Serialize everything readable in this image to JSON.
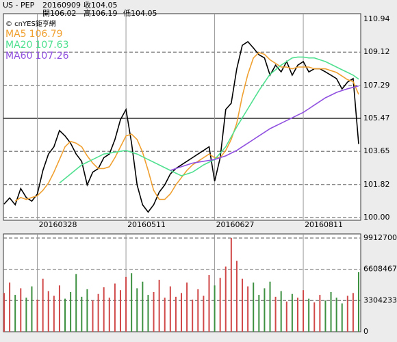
{
  "header": {
    "symbol": "US - PEP",
    "date": "20160909",
    "quotes": [
      {
        "label": "收",
        "value": 104.05
      },
      {
        "label": "開",
        "value": 106.02
      },
      {
        "label": "高",
        "value": 106.19
      },
      {
        "label": "低",
        "value": 104.05
      }
    ]
  },
  "chart_data": [
    {
      "type": "line",
      "source": "© cnYES鉅亨網",
      "categories": [
        null,
        null,
        null,
        null,
        null,
        null,
        "20160328",
        null,
        null,
        null,
        null,
        null,
        null,
        null,
        null,
        null,
        null,
        null,
        null,
        null,
        null,
        null,
        "20160511",
        null,
        null,
        null,
        null,
        null,
        null,
        null,
        null,
        null,
        null,
        null,
        null,
        null,
        null,
        null,
        "20160627",
        null,
        null,
        null,
        null,
        null,
        null,
        null,
        null,
        null,
        null,
        null,
        null,
        null,
        null,
        null,
        "20160811",
        null,
        null,
        null,
        null,
        null,
        null,
        null,
        null,
        null,
        null
      ],
      "series": [
        {
          "color": "#000000",
          "values": [
            100.74,
            101.08,
            100.7,
            101.6,
            101.1,
            100.9,
            101.3,
            102.6,
            103.5,
            103.9,
            104.8,
            104.5,
            104.1,
            103.5,
            103.1,
            101.8,
            102.5,
            102.7,
            103.3,
            103.5,
            104.3,
            105.4,
            105.96,
            104.1,
            101.8,
            100.7,
            100.3,
            100.7,
            101.4,
            101.8,
            102.4,
            102.7,
            102.9,
            103.1,
            103.3,
            103.5,
            103.7,
            103.9,
            102.0,
            103.3,
            105.96,
            106.3,
            108.2,
            109.5,
            109.7,
            109.35,
            108.98,
            108.8,
            107.85,
            108.4,
            108.03,
            108.6,
            107.85,
            108.4,
            108.6,
            108.03,
            108.2,
            108.2,
            108.03,
            107.85,
            107.66,
            107.09,
            107.47,
            107.66,
            104.05
          ]
        },
        {
          "name": "MA5",
          "color": "#f0a030",
          "values": [
            null,
            null,
            100.9,
            101.1,
            101.0,
            101.1,
            101.2,
            101.5,
            101.9,
            102.5,
            103.2,
            103.9,
            104.2,
            104.1,
            103.9,
            103.4,
            103.0,
            102.7,
            102.7,
            102.8,
            103.3,
            103.9,
            104.5,
            104.6,
            104.3,
            103.6,
            102.6,
            101.5,
            101.0,
            101.0,
            101.3,
            101.8,
            102.2,
            102.6,
            102.9,
            103.1,
            103.3,
            103.5,
            103.3,
            103.3,
            103.7,
            104.3,
            105.2,
            106.7,
            107.9,
            108.8,
            109.1,
            109.0,
            108.7,
            108.5,
            108.3,
            108.3,
            108.2,
            108.3,
            108.3,
            108.3,
            108.2,
            108.2,
            108.2,
            108.1,
            108.0,
            107.8,
            107.6,
            107.5,
            106.79
          ]
        },
        {
          "name": "MA20",
          "color": "#50e090",
          "values": [
            null,
            null,
            null,
            null,
            null,
            null,
            null,
            null,
            null,
            null,
            101.9,
            102.15,
            102.4,
            102.65,
            102.9,
            103.05,
            103.2,
            103.35,
            103.5,
            103.55,
            103.6,
            103.65,
            103.7,
            103.6,
            103.5,
            103.35,
            103.2,
            103.05,
            102.9,
            102.75,
            102.6,
            102.45,
            102.3,
            102.4,
            102.5,
            102.7,
            102.9,
            103.05,
            103.2,
            103.55,
            103.9,
            104.45,
            105.0,
            105.5,
            106.0,
            106.5,
            107.0,
            107.45,
            107.9,
            108.15,
            108.4,
            108.6,
            108.8,
            108.85,
            108.85,
            108.8,
            108.8,
            108.7,
            108.6,
            108.45,
            108.3,
            108.15,
            108.0,
            107.85,
            107.63
          ]
        },
        {
          "name": "MA60",
          "color": "#9050e0",
          "values": [
            null,
            null,
            null,
            null,
            null,
            null,
            null,
            null,
            null,
            null,
            null,
            null,
            null,
            null,
            null,
            null,
            null,
            null,
            null,
            null,
            null,
            null,
            null,
            null,
            null,
            null,
            null,
            null,
            null,
            null,
            102.6,
            102.7,
            102.8,
            102.9,
            103.0,
            103.05,
            103.1,
            103.15,
            103.2,
            103.3,
            103.4,
            103.55,
            103.7,
            103.9,
            104.1,
            104.3,
            104.5,
            104.7,
            104.9,
            105.05,
            105.2,
            105.35,
            105.5,
            105.65,
            105.8,
            106.0,
            106.2,
            106.4,
            106.6,
            106.75,
            106.9,
            107.0,
            107.1,
            107.18,
            107.26
          ]
        }
      ],
      "ylim": [
        100,
        110.94
      ],
      "yticks": [
        110.94,
        109.12,
        107.29,
        105.47,
        103.65,
        101.82,
        {
          "value": 100,
          "label": "100.00"
        }
      ],
      "grid": true
    },
    {
      "type": "bar",
      "up_color": "#d04848",
      "down_color": "#3c9040",
      "values": [
        4100000,
        5200000,
        3900000,
        4600000,
        3600000,
        4800000,
        3400000,
        5600000,
        4300000,
        3800000,
        4900000,
        3500000,
        4200000,
        6100000,
        3700000,
        4500000,
        3300000,
        4000000,
        4700000,
        3600000,
        5100000,
        4400000,
        5800000,
        6200000,
        4600000,
        5300000,
        3900000,
        4200000,
        5500000,
        3600000,
        4800000,
        3700000,
        4100000,
        5200000,
        3400000,
        4500000,
        3800000,
        6000000,
        4900000,
        5700000,
        6900000,
        9912700,
        7500000,
        5600000,
        4800000,
        5200000,
        3900000,
        4600000,
        5300000,
        3700000,
        4300000,
        3200000,
        4000000,
        3600000,
        4400000,
        3500000,
        3100000,
        3900000,
        3300000,
        4200000,
        3600000,
        3000000,
        3800000,
        4100000,
        6300000
      ],
      "ylim": [
        0,
        9912700
      ],
      "yticks": [
        9912700,
        6608467,
        3304233,
        0
      ],
      "grid": true
    }
  ]
}
